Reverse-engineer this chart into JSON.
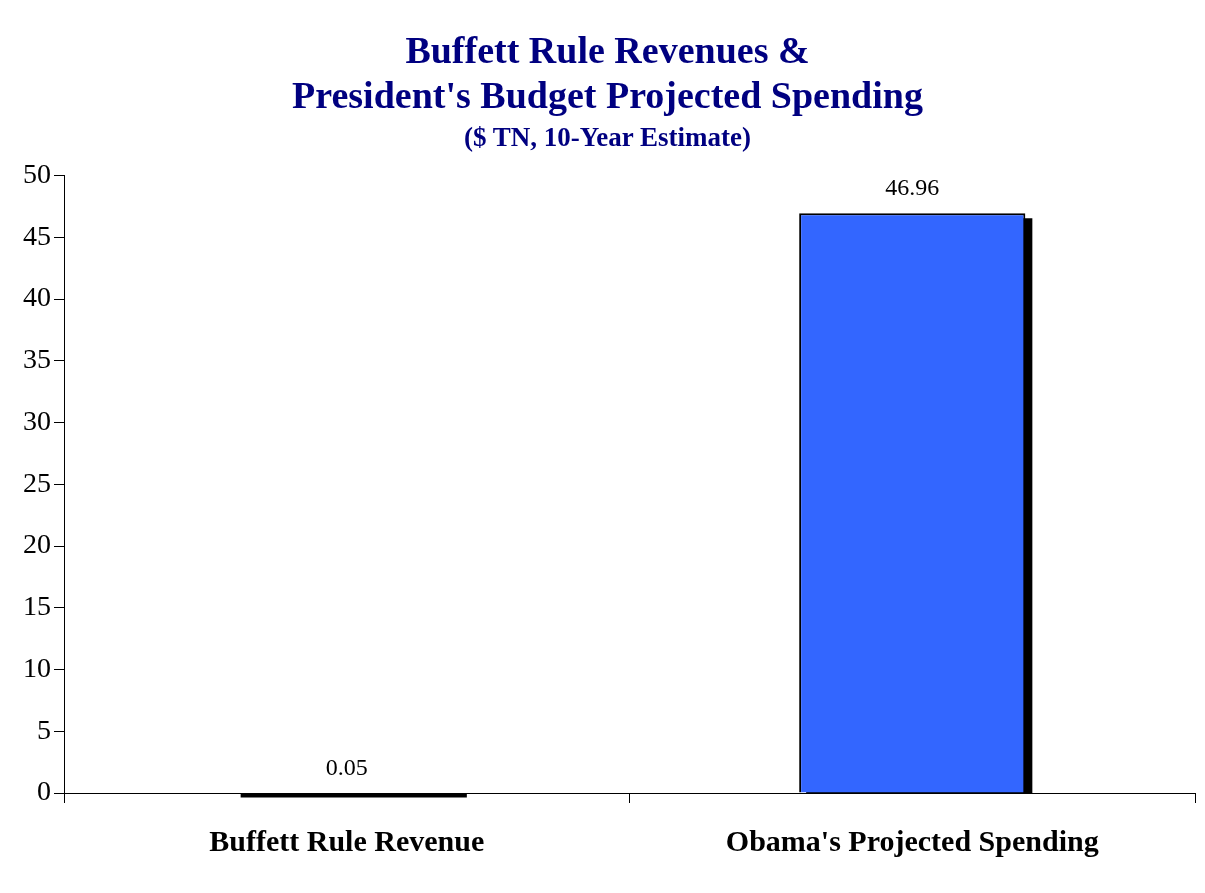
{
  "chart_data": {
    "type": "bar",
    "title": "Buffett Rule Revenues &\nPresident's Budget Projected Spending",
    "subtitle": "($ TN, 10-Year Estimate)",
    "categories": [
      "Buffett Rule Revenue",
      "Obama's Projected Spending"
    ],
    "values": [
      0.05,
      46.96
    ],
    "color": "#3366ff",
    "ylim": [
      0,
      50
    ],
    "yticks": [
      0,
      5,
      10,
      15,
      20,
      25,
      30,
      35,
      40,
      45,
      50
    ],
    "grid": false,
    "legend": false,
    "data_labels": true
  }
}
